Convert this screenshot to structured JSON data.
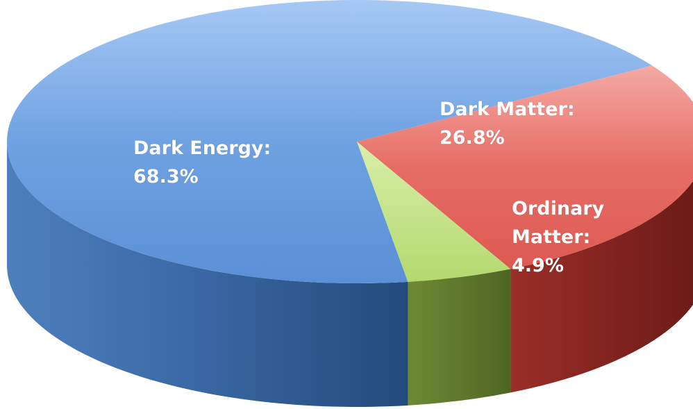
{
  "chart_data": {
    "type": "pie",
    "style": "3d",
    "title": "",
    "slices": [
      {
        "name": "Dark Energy",
        "value": 68.3,
        "label": [
          "Dark Energy:",
          "68.3%"
        ],
        "color": "#5d95dc"
      },
      {
        "name": "Dark Matter",
        "value": 26.8,
        "label": [
          "Dark Matter:",
          "26.8%"
        ],
        "color": "#e5645d"
      },
      {
        "name": "Ordinary Matter",
        "value": 4.9,
        "label": [
          "Ordinary",
          "Matter:",
          "4.9%"
        ],
        "color": "#b7db74"
      }
    ],
    "legend": "none"
  }
}
